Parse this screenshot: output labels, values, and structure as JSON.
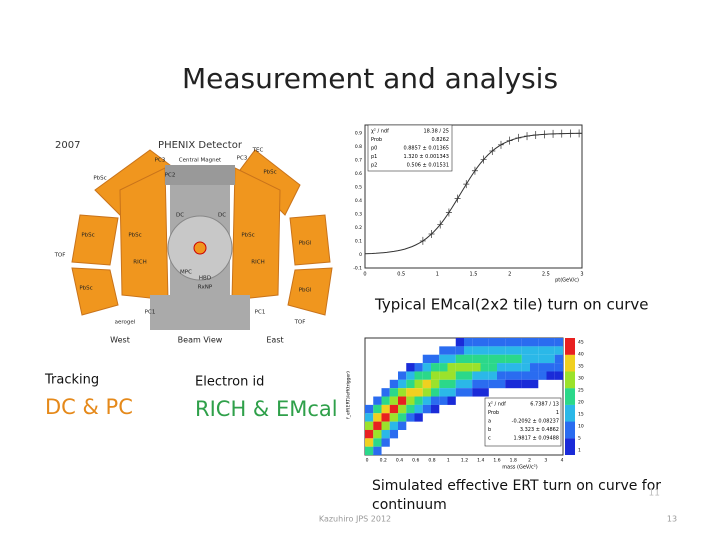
{
  "title": "Measurement and analysis",
  "detector": {
    "year": "2007",
    "name": "PHENIX Detector",
    "labels": [
      "PbSc",
      "PbSc",
      "PbSc",
      "PbSc",
      "PbGl",
      "PbGl",
      "PbSc",
      "PbSc",
      "RICH",
      "RICH",
      "DC",
      "DC",
      "PC1",
      "PC1",
      "PC2",
      "PC3",
      "PC3",
      "TOF",
      "TOF",
      "TEC",
      "Central Magnet",
      "MPC",
      "HBD",
      "RxNP",
      "aerogel"
    ],
    "bottom": [
      "West",
      "Beam View",
      "East"
    ]
  },
  "turn_on_plot": {
    "stats": [
      [
        "χ² / ndf",
        "18.38 / 25"
      ],
      [
        "Prob",
        "0.8262"
      ],
      [
        "p0",
        "0.8857 ± 0.01365"
      ],
      [
        "p1",
        "1.320 ± 0.001343"
      ],
      [
        "p2",
        "0.506 ± 0.01531"
      ]
    ],
    "x_ticks": [
      "0",
      "0.5",
      "1",
      "1.5",
      "2",
      "2.5",
      "3"
    ],
    "x_label": "pt(GeV/c)",
    "y_ticks": [
      "0.9",
      "0.8",
      "0.7",
      "0.6",
      "0.5",
      "0.4",
      "0.3",
      "0.2",
      "0.1",
      "0",
      "-0.1"
    ],
    "caption": "Typical EMcal(2x2 tile) turn on curve"
  },
  "sections": [
    {
      "heading": "Tracking",
      "detail": "DC & PC"
    },
    {
      "heading": "Electron id",
      "detail": "RICH & EMcal"
    }
  ],
  "ert_plot": {
    "stats": [
      [
        "χ² / ndf",
        "6.7387 / 13"
      ],
      [
        "Prob",
        "1"
      ],
      [
        "a",
        "-0.2092 ± 0.08237"
      ],
      [
        "b",
        "3.323 ± 0.4862"
      ],
      [
        "c",
        "1.9817 ± 0.09488"
      ]
    ],
    "x_ticks": [
      "0",
      "0.2",
      "0.4",
      "0.6",
      "0.8",
      "1",
      "1.2",
      "1.4",
      "1.6",
      "1.8",
      "2",
      "3",
      "4"
    ],
    "x_label": "mass (GeV/c²)",
    "y_label": "f_eff(ERT)/eff(trigger)",
    "colorbar_ticks": [
      "45",
      "40",
      "35",
      "30",
      "25",
      "20",
      "15",
      "10",
      "5",
      "1"
    ],
    "caption_lines": [
      "Simulated effective ERT turn on curve for",
      "continuum"
    ],
    "slide_mark": "11"
  },
  "footer": {
    "text": "Kazuhiro JPS 2012",
    "page": "13"
  }
}
